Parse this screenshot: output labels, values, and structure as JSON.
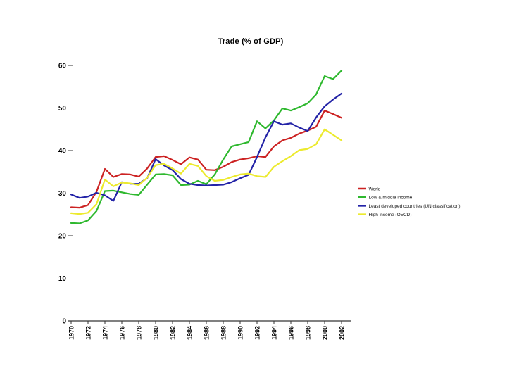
{
  "page": {
    "background": "#ffffff"
  },
  "chart_data": {
    "type": "line",
    "title": "Trade (% of GDP)",
    "xlabel": "",
    "ylabel": "",
    "grid": false,
    "legend_position": "right",
    "ylim": [
      0,
      60
    ],
    "y_ticks": [
      0,
      10,
      20,
      30,
      40,
      50,
      60
    ],
    "y_dash_levels": [
      20,
      40,
      60
    ],
    "x": [
      1970,
      1971,
      1972,
      1973,
      1974,
      1975,
      1976,
      1977,
      1978,
      1979,
      1980,
      1981,
      1982,
      1983,
      1984,
      1985,
      1986,
      1987,
      1988,
      1989,
      1990,
      1991,
      1992,
      1993,
      1994,
      1995,
      1996,
      1997,
      1998,
      1999,
      2000,
      2001,
      2002
    ],
    "x_tick_labels": [
      "1970",
      "1972",
      "1974",
      "1976",
      "1978",
      "1980",
      "1982",
      "1984",
      "1986",
      "1988",
      "1990",
      "1992",
      "1994",
      "1996",
      "1998",
      "2000",
      "2002"
    ],
    "series": [
      {
        "name": "World",
        "color": "#cc2222",
        "values": [
          26.7,
          26.6,
          27.2,
          30.3,
          35.7,
          33.8,
          34.5,
          34.4,
          33.9,
          35.8,
          38.5,
          38.7,
          37.8,
          36.8,
          38.4,
          37.9,
          35.5,
          35.4,
          36.2,
          37.3,
          37.9,
          38.2,
          38.7,
          38.5,
          41.0,
          42.4,
          43.0,
          44.0,
          44.7,
          45.6,
          49.4,
          48.6,
          47.7
        ]
      },
      {
        "name": "Low & middle income",
        "color": "#2eb82e",
        "values": [
          23.0,
          22.9,
          23.6,
          25.8,
          30.5,
          30.6,
          30.2,
          29.8,
          29.6,
          32.0,
          34.4,
          34.5,
          34.2,
          31.9,
          32.0,
          32.9,
          32.1,
          34.4,
          37.9,
          41.0,
          41.5,
          42.0,
          46.9,
          45.2,
          47.1,
          49.9,
          49.4,
          50.2,
          51.1,
          53.2,
          57.5,
          56.8,
          58.8
        ]
      },
      {
        "name": "Least developed countries (UN classification)",
        "color": "#2323a7",
        "values": [
          29.7,
          28.9,
          29.2,
          30.1,
          29.5,
          28.2,
          32.6,
          32.2,
          32.2,
          33.5,
          38.0,
          36.5,
          35.4,
          33.3,
          32.2,
          31.9,
          31.8,
          31.9,
          32.0,
          32.6,
          33.5,
          34.3,
          38.5,
          43.1,
          46.9,
          46.1,
          46.4,
          45.4,
          44.6,
          47.8,
          50.4,
          52.0,
          53.4
        ]
      },
      {
        "name": "High income (OECD)",
        "color": "#ecea2e",
        "values": [
          25.3,
          25.1,
          25.4,
          27.4,
          33.2,
          31.6,
          32.5,
          32.3,
          31.9,
          33.6,
          36.6,
          36.9,
          35.8,
          34.6,
          36.9,
          36.4,
          34.0,
          32.9,
          33.1,
          33.8,
          34.4,
          34.6,
          34.0,
          33.8,
          36.2,
          37.5,
          38.7,
          40.1,
          40.4,
          41.5,
          45.0,
          43.7,
          42.4
        ]
      }
    ]
  }
}
